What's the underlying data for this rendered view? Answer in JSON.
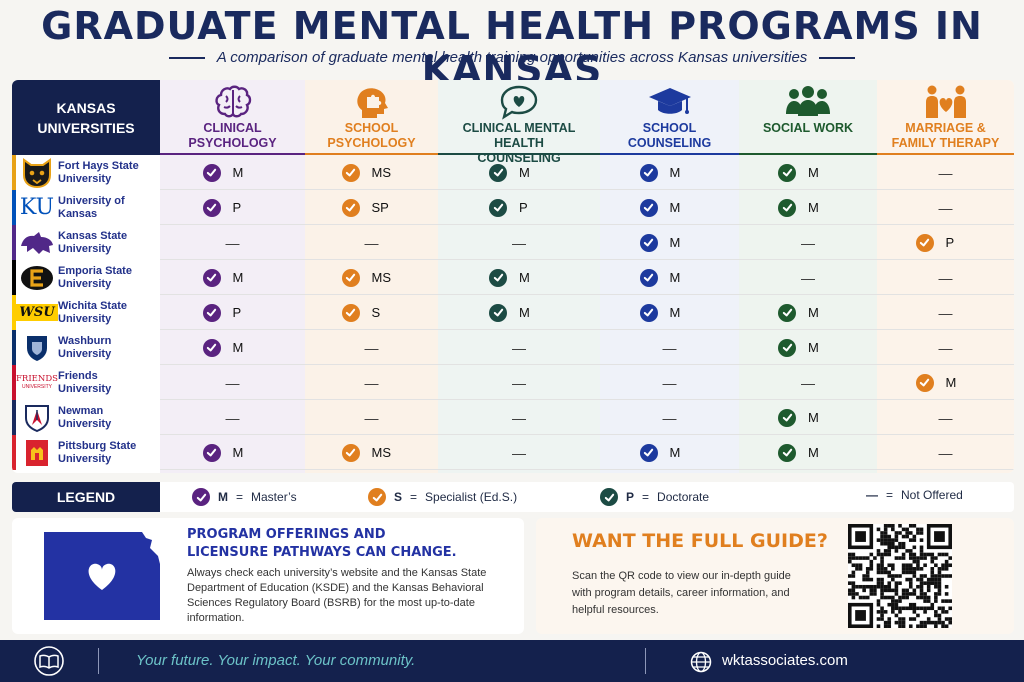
{
  "page": {
    "title": "GRADUATE MENTAL HEALTH PROGRAMS IN KANSAS",
    "subtitle": "A comparison of graduate mental health training opportunities across Kansas universities"
  },
  "corner_label": "KANSAS UNIVERSITIES",
  "programs": [
    {
      "label": "CLINICAL PSYCHOLOGY",
      "color": "#5a2380",
      "icon": "brain-icon"
    },
    {
      "label": "SCHOOL PSYCHOLOGY",
      "color": "#e07f1f",
      "icon": "head-puzzle-icon"
    },
    {
      "label": "CLINICAL MENTAL HEALTH COUNSELING",
      "color": "#1c4b44",
      "icon": "speech-heart-icon"
    },
    {
      "label": "SCHOOL COUNSELING",
      "color": "#1d3a9e",
      "icon": "graduation-cap-icon"
    },
    {
      "label": "SOCIAL WORK",
      "color": "#1e5a2e",
      "icon": "people-group-icon"
    },
    {
      "label": "MARRIAGE & FAMILY THERAPY",
      "color": "#e07f1f",
      "icon": "family-heart-icon"
    }
  ],
  "universities": [
    {
      "name": "Fort Hays State University",
      "color": "#e8a217",
      "logo": "tiger-logo",
      "offers": [
        "M",
        "MS",
        "M",
        "M",
        "M",
        ""
      ]
    },
    {
      "name": "University of Kansas",
      "color": "#0051ba",
      "logo": "ku-logo",
      "logo_text": "KU",
      "offers": [
        "P",
        "SP",
        "P",
        "M",
        "M",
        ""
      ]
    },
    {
      "name": "Kansas State University",
      "color": "#512888",
      "logo": "wildcat-logo",
      "offers": [
        "",
        "",
        "",
        "M",
        "",
        "P"
      ]
    },
    {
      "name": "Emporia State University",
      "color": "#000000",
      "logo": "emporia-e-logo",
      "offers": [
        "M",
        "MS",
        "M",
        "M",
        "",
        ""
      ]
    },
    {
      "name": "Wichita State University",
      "color": "#ffcd00",
      "logo": "wsu-logo",
      "logo_text": "WSU",
      "offers": [
        "P",
        "S",
        "M",
        "M",
        "M",
        ""
      ]
    },
    {
      "name": "Washburn University",
      "color": "#0a2f6b",
      "logo": "shield-logo",
      "offers": [
        "M",
        "",
        "",
        "",
        "M",
        ""
      ]
    },
    {
      "name": "Friends University",
      "color": "#c8102e",
      "logo": "friends-logo",
      "logo_text": "FRIENDS",
      "logo_sub": "UNIVERSITY",
      "offers": [
        "",
        "",
        "",
        "",
        "",
        "M"
      ]
    },
    {
      "name": "Newman University",
      "color": "#1a2a5e",
      "logo": "newman-logo",
      "offers": [
        "",
        "",
        "",
        "",
        "M",
        ""
      ]
    },
    {
      "name": "Pittsburg State University",
      "color": "#d9232e",
      "logo": "gorilla-logo",
      "offers": [
        "M",
        "MS",
        "",
        "M",
        "M",
        ""
      ]
    }
  ],
  "legend": {
    "title": "LEGEND",
    "items": [
      {
        "key": "M",
        "text": "Master’s",
        "color": "#5a2380"
      },
      {
        "key": "S",
        "text": "Specialist (Ed.S.)",
        "color": "#e07f1f"
      },
      {
        "key": "P",
        "text": "Doctorate",
        "color": "#1c4b44"
      },
      {
        "key": "—",
        "text": "Not Offered"
      }
    ]
  },
  "info": {
    "heading_line1": "PROGRAM OFFERINGS AND",
    "heading_line2": "LICENSURE PATHWAYS CAN CHANGE.",
    "body": "Always check each university’s website and the Kansas State Department of Education (KSDE) and the Kansas Behavioral Sciences Regulatory Board (BSRB) for the most up-to-date information."
  },
  "guide": {
    "heading": "WANT THE FULL GUIDE?",
    "body": "Scan the QR code to view our in-depth guide with program details, career information, and helpful resources."
  },
  "footer": {
    "tagline": "Your future. Your impact. Your community.",
    "website": "wktassociates.com"
  },
  "colors": {
    "navy": "#14214d",
    "accent_blue": "#2332a3",
    "orange": "#e07f1f"
  }
}
